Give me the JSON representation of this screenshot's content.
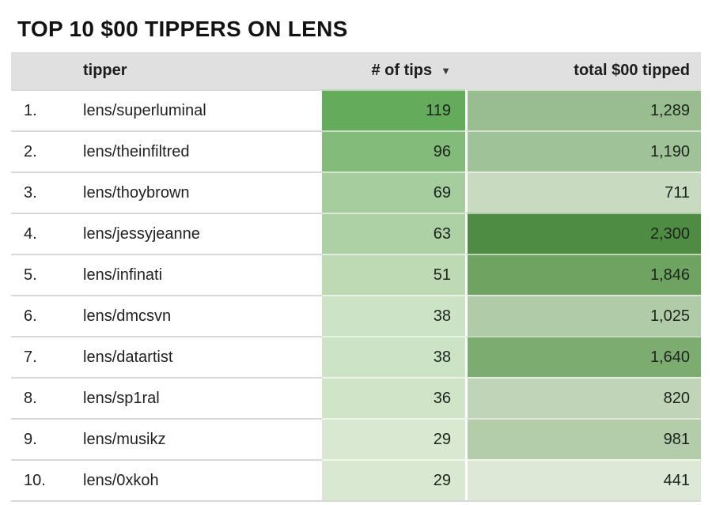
{
  "title": "TOP 10 $00 TIPPERS ON LENS",
  "table": {
    "columns": {
      "tipper": "tipper",
      "tips": "# of tips",
      "tips_sort_icon": "▼",
      "total": "total $00 tipped"
    },
    "rows": [
      {
        "rank": "1.",
        "tipper": "lens/superluminal",
        "tips": "119",
        "total": "1,289",
        "tips_color": "#65ab5c",
        "total_color": "#99bd90"
      },
      {
        "rank": "2.",
        "tipper": "lens/theinfiltred",
        "tips": "96",
        "total": "1,190",
        "tips_color": "#83bb7a",
        "total_color": "#a0c298"
      },
      {
        "rank": "3.",
        "tipper": "lens/thoybrown",
        "tips": "69",
        "total": "711",
        "tips_color": "#a5cd9d",
        "total_color": "#c8dbc1"
      },
      {
        "rank": "4.",
        "tipper": "lens/jessyjeanne",
        "tips": "63",
        "total": "2,300",
        "tips_color": "#add1a4",
        "total_color": "#4f8c43"
      },
      {
        "rank": "5.",
        "tipper": "lens/infinati",
        "tips": "51",
        "total": "1,846",
        "tips_color": "#bddab4",
        "total_color": "#6ea361"
      },
      {
        "rank": "6.",
        "tipper": "lens/dmcsvn",
        "tips": "38",
        "total": "1,025",
        "tips_color": "#cde3c5",
        "total_color": "#b0cba8"
      },
      {
        "rank": "7.",
        "tipper": "lens/datartist",
        "tips": "38",
        "total": "1,640",
        "tips_color": "#cde3c5",
        "total_color": "#7dac71"
      },
      {
        "rank": "8.",
        "tipper": "lens/sp1ral",
        "tips": "36",
        "total": "820",
        "tips_color": "#d0e4c8",
        "total_color": "#c0d5b8"
      },
      {
        "rank": "9.",
        "tipper": "lens/musikz",
        "tips": "29",
        "total": "981",
        "tips_color": "#d9e9d1",
        "total_color": "#b3cdaa"
      },
      {
        "rank": "10.",
        "tipper": "lens/0xkoh",
        "tips": "29",
        "total": "441",
        "tips_color": "#d9e9d1",
        "total_color": "#dde8d6"
      }
    ]
  },
  "colors": {
    "header_bg": "#e0e0e0",
    "row_border": "#d9d9d9",
    "heat_scale_dark": "#4f8c43",
    "heat_scale_light": "#dde8d6"
  },
  "chart_data": {
    "type": "table",
    "title": "TOP 10 $00 TIPPERS ON LENS",
    "columns": [
      "tipper",
      "# of tips",
      "total $00 tipped"
    ],
    "rows": [
      [
        "lens/superluminal",
        119,
        1289
      ],
      [
        "lens/theinfiltred",
        96,
        1190
      ],
      [
        "lens/thoybrown",
        69,
        711
      ],
      [
        "lens/jessyjeanne",
        63,
        2300
      ],
      [
        "lens/infinati",
        51,
        1846
      ],
      [
        "lens/dmcsvn",
        38,
        1025
      ],
      [
        "lens/datartist",
        38,
        1640
      ],
      [
        "lens/sp1ral",
        36,
        820
      ],
      [
        "lens/musikz",
        29,
        981
      ],
      [
        "lens/0xkoh",
        29,
        441
      ]
    ],
    "sort": {
      "column": "# of tips",
      "direction": "descending"
    },
    "heatmap": true,
    "heatmap_ranges": {
      "tips": [
        29,
        119
      ],
      "total": [
        441,
        2300
      ]
    }
  }
}
